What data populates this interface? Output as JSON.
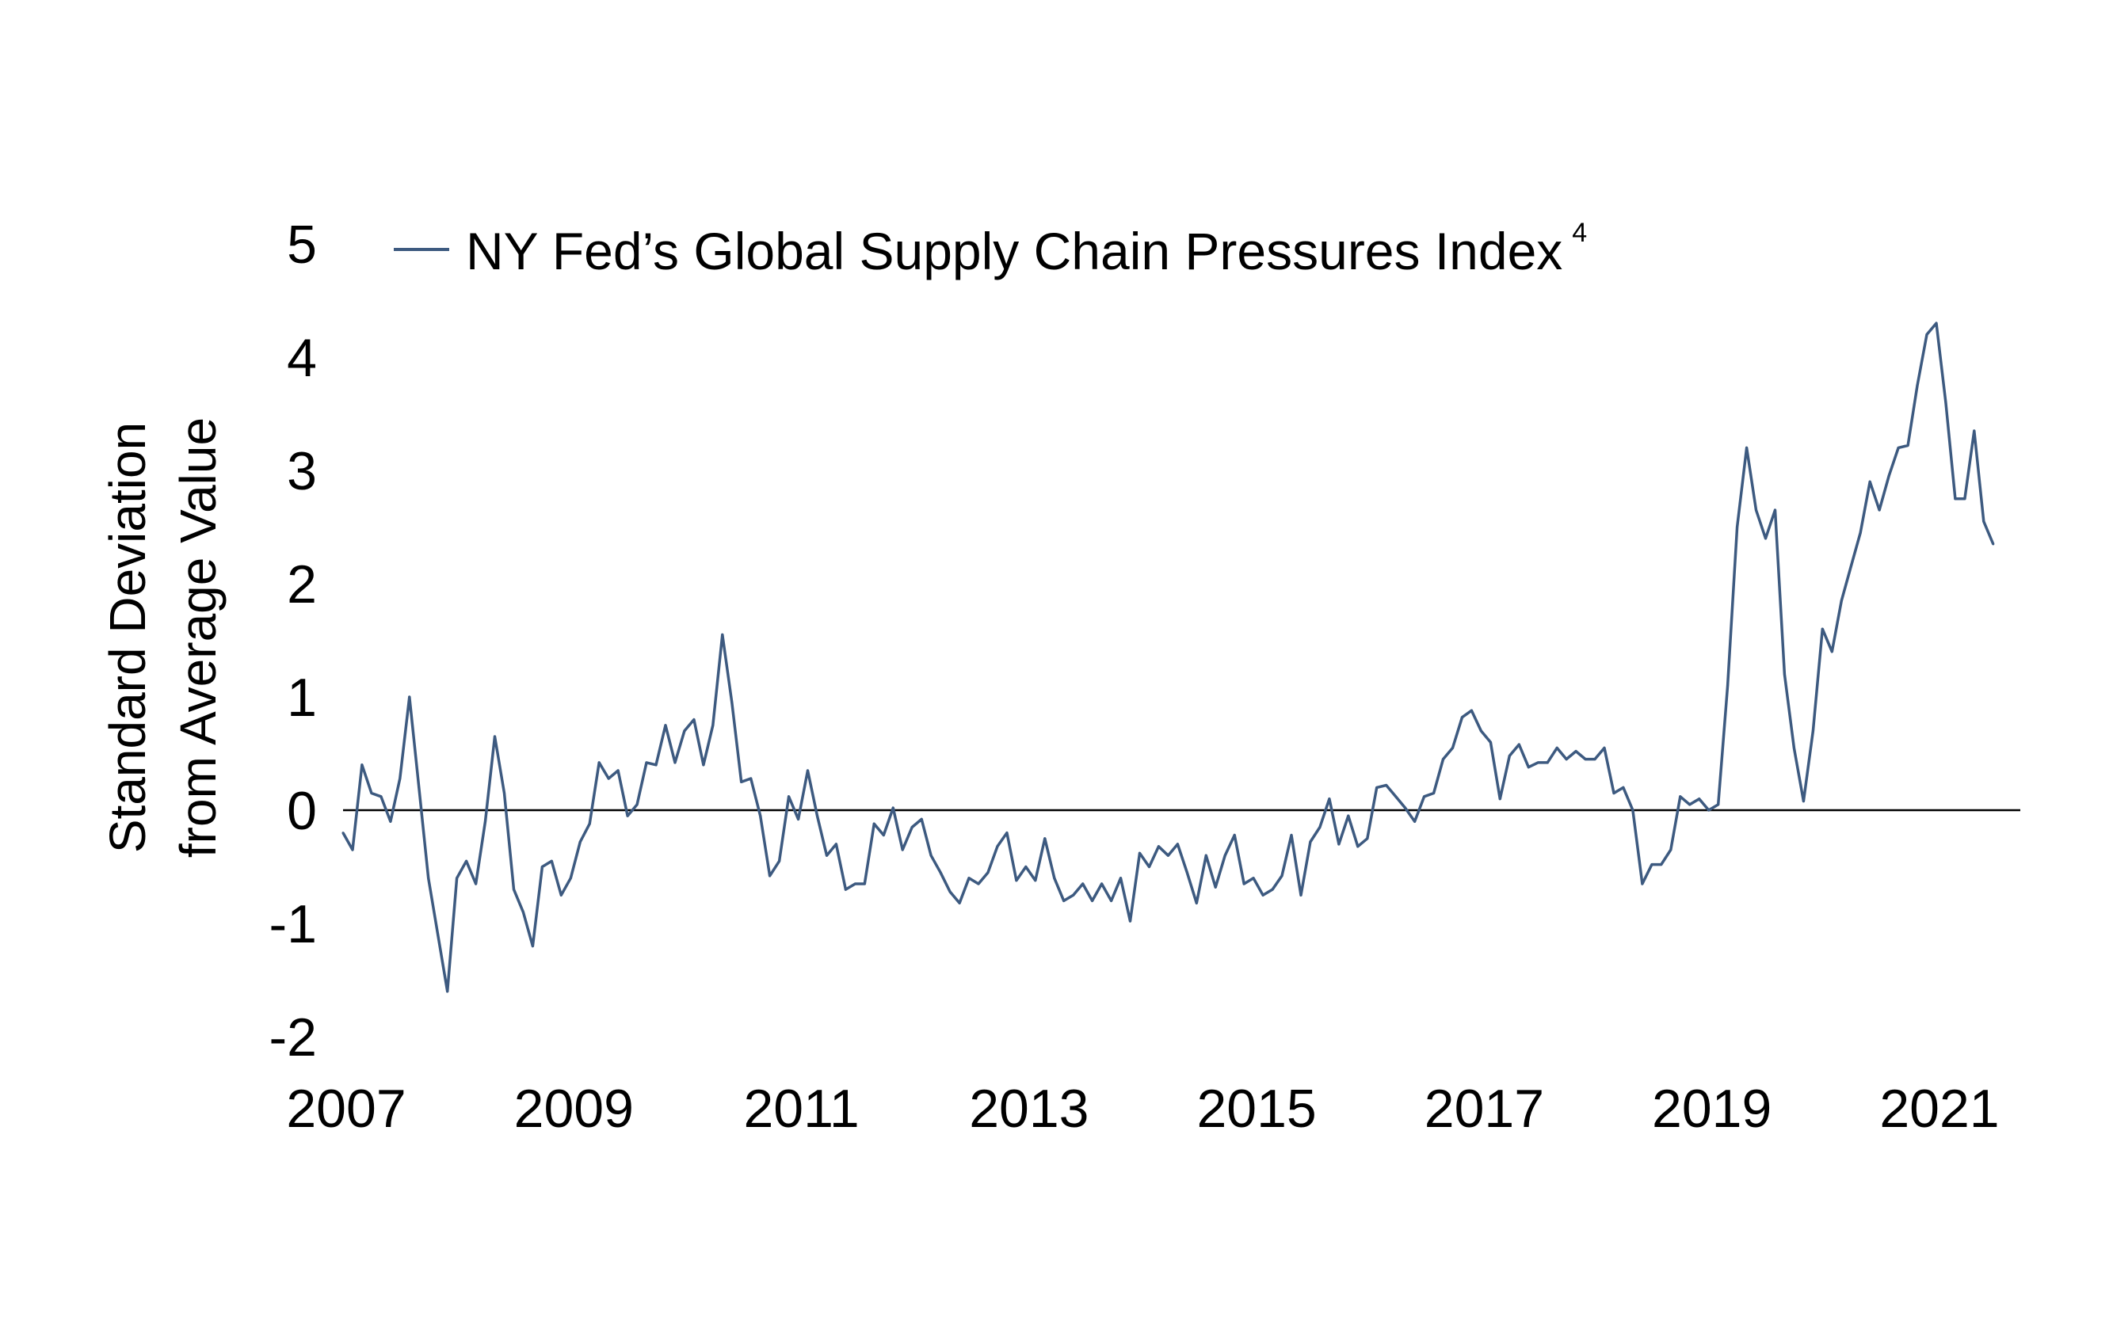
{
  "chart_data": {
    "type": "line",
    "title": "",
    "xlabel": "",
    "ylabel": [
      "Standard Deviation",
      "from Average Value"
    ],
    "ylim": [
      -2,
      5
    ],
    "yticks": [
      "5",
      "4",
      "3",
      "2",
      "1",
      "0",
      "-1",
      "-2"
    ],
    "ytick_values": [
      5,
      4,
      3,
      2,
      1,
      0,
      -1,
      -2
    ],
    "xticks": [
      "2007",
      "2009",
      "2011",
      "2013",
      "2015",
      "2017",
      "2019",
      "2021"
    ],
    "x_start": "2007-01",
    "x_frequency": "monthly",
    "grid": false,
    "zero_line": true,
    "legend": {
      "placement": "top",
      "entries": [
        {
          "label": "NY Fed’s Global Supply Chain Pressures Index",
          "superscript": "4",
          "color": "#3d5a80"
        }
      ]
    },
    "series": [
      {
        "name": "NY Fed’s Global Supply Chain Pressures Index",
        "color": "#3d5a80",
        "values": [
          -0.2,
          -0.35,
          0.4,
          0.15,
          0.12,
          -0.1,
          0.28,
          1.0,
          0.2,
          -0.6,
          -1.1,
          -1.6,
          -0.6,
          -0.45,
          -0.65,
          -0.1,
          0.65,
          0.15,
          -0.7,
          -0.9,
          -1.2,
          -0.5,
          -0.45,
          -0.75,
          -0.6,
          -0.28,
          -0.12,
          0.42,
          0.28,
          0.35,
          -0.05,
          0.05,
          0.42,
          0.4,
          0.75,
          0.42,
          0.7,
          0.8,
          0.4,
          0.75,
          1.55,
          0.95,
          0.25,
          0.28,
          -0.05,
          -0.58,
          -0.45,
          0.12,
          -0.08,
          0.35,
          -0.05,
          -0.4,
          -0.3,
          -0.7,
          -0.65,
          -0.65,
          -0.12,
          -0.22,
          0.02,
          -0.35,
          -0.15,
          -0.08,
          -0.4,
          -0.55,
          -0.72,
          -0.82,
          -0.6,
          -0.65,
          -0.55,
          -0.32,
          -0.2,
          -0.62,
          -0.5,
          -0.62,
          -0.25,
          -0.6,
          -0.8,
          -0.75,
          -0.65,
          -0.8,
          -0.65,
          -0.8,
          -0.6,
          -0.98,
          -0.38,
          -0.5,
          -0.32,
          -0.4,
          -0.3,
          -0.55,
          -0.82,
          -0.4,
          -0.68,
          -0.4,
          -0.22,
          -0.65,
          -0.6,
          -0.75,
          -0.7,
          -0.58,
          -0.22,
          -0.75,
          -0.28,
          -0.15,
          0.1,
          -0.3,
          -0.05,
          -0.32,
          -0.25,
          0.2,
          0.22,
          0.12,
          0.02,
          -0.1,
          0.12,
          0.15,
          0.45,
          0.55,
          0.82,
          0.88,
          0.7,
          0.6,
          0.1,
          0.48,
          0.58,
          0.38,
          0.42,
          0.42,
          0.55,
          0.45,
          0.52,
          0.45,
          0.45,
          0.55,
          0.15,
          0.2,
          0.0,
          -0.65,
          -0.48,
          -0.48,
          -0.35,
          0.12,
          0.05,
          0.1,
          0.0,
          0.05,
          1.1,
          2.5,
          3.2,
          2.65,
          2.4,
          2.65,
          1.2,
          0.55,
          0.08,
          0.7,
          1.6,
          1.4,
          1.85,
          2.15,
          2.45,
          2.9,
          2.65,
          2.95,
          3.2,
          3.22,
          3.75,
          4.2,
          4.3,
          3.6,
          2.75,
          2.75,
          3.35,
          2.55,
          2.35
        ]
      }
    ]
  }
}
